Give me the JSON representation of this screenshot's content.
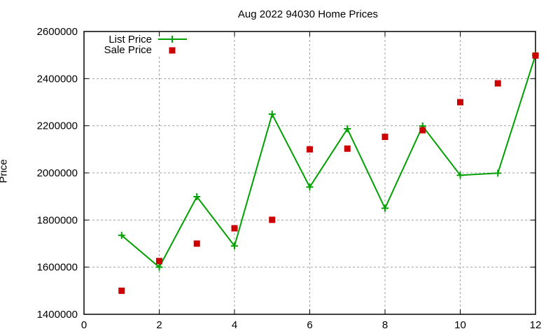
{
  "chart_data": {
    "type": "line",
    "title": "Aug 2022 94030 Home Prices",
    "xlabel": "",
    "ylabel": "Price",
    "xlim": [
      0,
      12
    ],
    "ylim": [
      1400000,
      2600000
    ],
    "x_ticks": [
      "0",
      "2",
      "4",
      "6",
      "8",
      "10",
      "12"
    ],
    "y_ticks": [
      "1400000",
      "1600000",
      "1800000",
      "2000000",
      "2200000",
      "2400000",
      "2600000"
    ],
    "grid": true,
    "legend_position": "top-left",
    "x": [
      1,
      2,
      3,
      4,
      5,
      6,
      7,
      8,
      9,
      10,
      11,
      12
    ],
    "series": [
      {
        "name": "List Price",
        "style": "linespoints",
        "color": "#00a000",
        "values": [
          1735000,
          1600000,
          1899000,
          1690000,
          2249000,
          1940000,
          2187000,
          1850000,
          2199000,
          1990000,
          1999000,
          2500000
        ]
      },
      {
        "name": "Sale Price",
        "style": "points",
        "color": "#cc0000",
        "values": [
          1500000,
          1626000,
          1700000,
          1765000,
          1801000,
          2100000,
          2103000,
          2153000,
          2181000,
          2300000,
          2380000,
          2498000
        ]
      }
    ]
  }
}
